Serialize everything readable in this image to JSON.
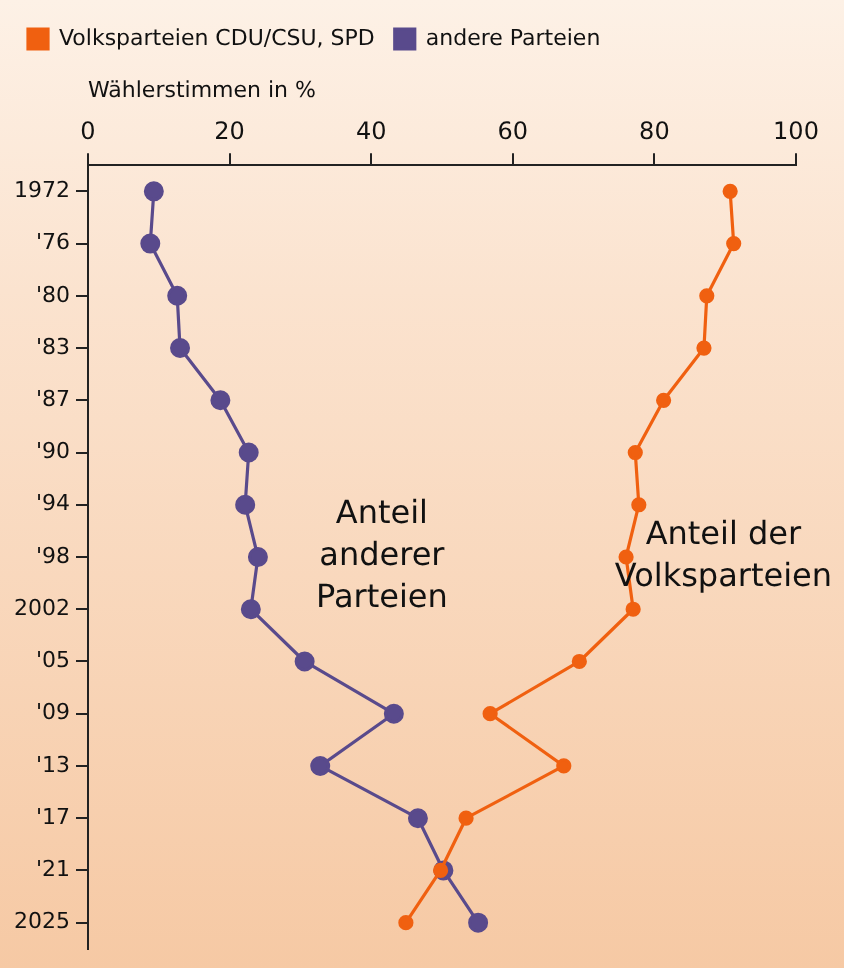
{
  "chart_data": {
    "type": "line",
    "orientation": "horizontal",
    "xlabel": "Wählerstimmen in %",
    "categories": [
      "1972",
      "'76",
      "'80",
      "'83",
      "'87",
      "'90",
      "'94",
      "'98",
      "2002",
      "'05",
      "'09",
      "'13",
      "'17",
      "'21",
      "2025"
    ],
    "series": [
      {
        "name": "Volksparteien CDU/CSU, SPD",
        "color": "#f06010",
        "values": [
          90.7,
          91.2,
          87.4,
          87.0,
          81.3,
          77.3,
          77.8,
          76.0,
          77.0,
          69.4,
          56.8,
          67.2,
          53.4,
          49.8,
          44.9
        ]
      },
      {
        "name": "andere Parteien",
        "color": "#594a8c",
        "values": [
          9.3,
          8.8,
          12.6,
          13.0,
          18.7,
          22.7,
          22.2,
          24.0,
          23.0,
          30.6,
          43.2,
          32.8,
          46.6,
          50.2,
          55.1
        ]
      }
    ],
    "xlim": [
      0,
      100
    ],
    "xticks": [
      0,
      20,
      40,
      60,
      80,
      100
    ],
    "annotations": [
      "Anteil der Volksparteien",
      "Anteil anderer Parteien"
    ],
    "grid": false,
    "legend": "top",
    "marker": "circle",
    "line_style": "solid"
  }
}
